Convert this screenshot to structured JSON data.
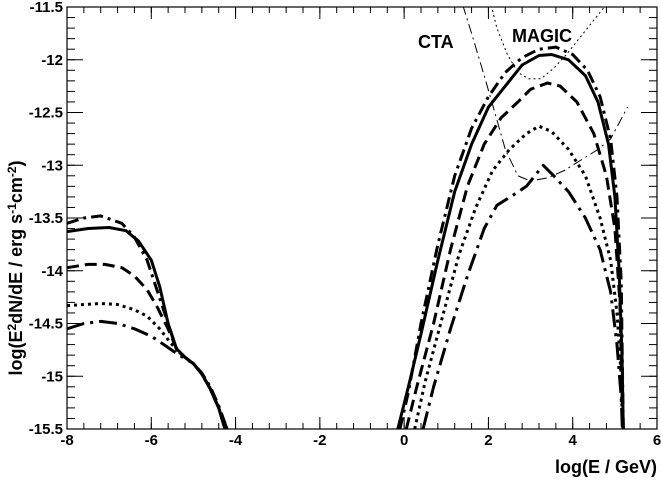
{
  "chart_data": {
    "type": "line",
    "xlabel": "log(E / GeV)",
    "ylabel_parts": [
      "log(E",
      "2",
      "dN/dE / erg s",
      "-1",
      "cm",
      "-2",
      ")"
    ],
    "xlim": [
      -8,
      6
    ],
    "ylim": [
      -15.5,
      -11.5
    ],
    "x_ticks": [
      -8,
      -6,
      -4,
      -2,
      0,
      2,
      4,
      6
    ],
    "x_tick_labels": [
      "-8",
      "-6",
      "-4",
      "-2",
      "0",
      "2",
      "4",
      "6"
    ],
    "y_ticks": [
      -15.5,
      -15,
      -14.5,
      -14,
      -13.5,
      -13,
      -12.5,
      -12,
      -11.5
    ],
    "y_tick_labels": [
      "-15.5",
      "-15",
      "-14.5",
      "-14",
      "-13.5",
      "-13",
      "-12.5",
      "-12",
      "-11.5"
    ],
    "annotations": [
      {
        "text": "CTA",
        "x": 1.2,
        "y": -12.05
      },
      {
        "text": "MAGIC",
        "x": 2.95,
        "y": -11.82
      }
    ],
    "grid": false,
    "series": [
      {
        "style": "solid",
        "low_energy": [
          [
            -8,
            -13.63
          ],
          [
            -7.5,
            -13.6
          ],
          [
            -7,
            -13.59
          ],
          [
            -6.6,
            -13.62
          ],
          [
            -6.3,
            -13.72
          ],
          [
            -6,
            -13.9
          ],
          [
            -5.8,
            -14.15
          ],
          [
            -5.6,
            -14.5
          ],
          [
            -5.4,
            -14.74
          ],
          [
            -5.2,
            -14.82
          ],
          [
            -5,
            -14.88
          ],
          [
            -4.8,
            -14.98
          ],
          [
            -4.6,
            -15.12
          ],
          [
            -4.4,
            -15.3
          ],
          [
            -4.25,
            -15.5
          ]
        ],
        "high_energy": [
          [
            -0.15,
            -15.5
          ],
          [
            0.1,
            -15.1
          ],
          [
            0.4,
            -14.6
          ],
          [
            0.8,
            -13.9
          ],
          [
            1.2,
            -13.25
          ],
          [
            1.6,
            -12.8
          ],
          [
            2.0,
            -12.45
          ],
          [
            2.4,
            -12.25
          ],
          [
            2.8,
            -12.05
          ],
          [
            3.2,
            -11.96
          ],
          [
            3.5,
            -11.95
          ],
          [
            3.9,
            -12.0
          ],
          [
            4.3,
            -12.15
          ],
          [
            4.6,
            -12.4
          ],
          [
            4.85,
            -12.8
          ],
          [
            5.0,
            -13.3
          ],
          [
            5.1,
            -14.0
          ],
          [
            5.17,
            -14.8
          ],
          [
            5.2,
            -15.5
          ]
        ]
      },
      {
        "style": "dashdot",
        "low_energy": [
          [
            -8,
            -13.55
          ],
          [
            -7.6,
            -13.5
          ],
          [
            -7.2,
            -13.48
          ],
          [
            -6.7,
            -13.55
          ],
          [
            -6.4,
            -13.68
          ],
          [
            -6.1,
            -13.9
          ],
          [
            -5.85,
            -14.2
          ],
          [
            -5.6,
            -14.5
          ],
          [
            -5.4,
            -14.75
          ],
          [
            -5.2,
            -14.82
          ],
          [
            -5,
            -14.88
          ],
          [
            -4.8,
            -14.97
          ],
          [
            -4.6,
            -15.1
          ],
          [
            -4.4,
            -15.28
          ],
          [
            -4.2,
            -15.5
          ]
        ],
        "high_energy": [
          [
            -0.1,
            -15.5
          ],
          [
            0.1,
            -15.15
          ],
          [
            0.4,
            -14.5
          ],
          [
            0.8,
            -13.75
          ],
          [
            1.2,
            -13.1
          ],
          [
            1.6,
            -12.65
          ],
          [
            2.0,
            -12.35
          ],
          [
            2.4,
            -12.12
          ],
          [
            2.8,
            -11.98
          ],
          [
            3.2,
            -11.9
          ],
          [
            3.6,
            -11.88
          ],
          [
            4.0,
            -11.95
          ],
          [
            4.35,
            -12.1
          ],
          [
            4.65,
            -12.35
          ],
          [
            4.9,
            -12.75
          ],
          [
            5.05,
            -13.3
          ],
          [
            5.15,
            -14.1
          ],
          [
            5.2,
            -15.5
          ]
        ]
      },
      {
        "style": "dashed",
        "low_energy": [
          [
            -8,
            -13.97
          ],
          [
            -7.5,
            -13.94
          ],
          [
            -7.1,
            -13.94
          ],
          [
            -6.7,
            -13.97
          ],
          [
            -6.4,
            -14.05
          ],
          [
            -6.1,
            -14.18
          ],
          [
            -5.85,
            -14.35
          ],
          [
            -5.6,
            -14.55
          ],
          [
            -5.4,
            -14.74
          ],
          [
            -5.2,
            -14.82
          ],
          [
            -5,
            -14.88
          ],
          [
            -4.8,
            -14.98
          ],
          [
            -4.6,
            -15.12
          ],
          [
            -4.4,
            -15.3
          ],
          [
            -4.25,
            -15.5
          ]
        ],
        "high_energy": [
          [
            0.05,
            -15.5
          ],
          [
            0.3,
            -15.1
          ],
          [
            0.7,
            -14.5
          ],
          [
            1.1,
            -13.8
          ],
          [
            1.5,
            -13.2
          ],
          [
            1.9,
            -12.8
          ],
          [
            2.3,
            -12.55
          ],
          [
            2.7,
            -12.4
          ],
          [
            3.0,
            -12.28
          ],
          [
            3.4,
            -12.22
          ],
          [
            3.7,
            -12.25
          ],
          [
            4.1,
            -12.4
          ],
          [
            4.5,
            -12.7
          ],
          [
            4.8,
            -13.1
          ],
          [
            5.0,
            -13.6
          ],
          [
            5.12,
            -14.3
          ],
          [
            5.19,
            -15.5
          ]
        ]
      },
      {
        "style": "dotted",
        "low_energy": [
          [
            -8,
            -14.33
          ],
          [
            -7.6,
            -14.32
          ],
          [
            -7.2,
            -14.31
          ],
          [
            -6.8,
            -14.32
          ],
          [
            -6.4,
            -14.37
          ],
          [
            -6.1,
            -14.43
          ],
          [
            -5.8,
            -14.55
          ],
          [
            -5.55,
            -14.68
          ],
          [
            -5.35,
            -14.77
          ],
          [
            -5.2,
            -14.82
          ],
          [
            -5,
            -14.88
          ],
          [
            -4.8,
            -14.98
          ],
          [
            -4.6,
            -15.12
          ],
          [
            -4.4,
            -15.3
          ],
          [
            -4.25,
            -15.5
          ]
        ],
        "high_energy": [
          [
            0.25,
            -15.5
          ],
          [
            0.5,
            -15.05
          ],
          [
            0.9,
            -14.45
          ],
          [
            1.3,
            -13.85
          ],
          [
            1.7,
            -13.4
          ],
          [
            2.1,
            -13.05
          ],
          [
            2.5,
            -12.85
          ],
          [
            2.9,
            -12.7
          ],
          [
            3.2,
            -12.63
          ],
          [
            3.5,
            -12.68
          ],
          [
            3.9,
            -12.85
          ],
          [
            4.3,
            -13.1
          ],
          [
            4.65,
            -13.5
          ],
          [
            4.9,
            -13.9
          ],
          [
            5.05,
            -14.4
          ],
          [
            5.15,
            -15.0
          ],
          [
            5.18,
            -15.5
          ]
        ]
      },
      {
        "style": "longdashdot",
        "low_energy": [
          [
            -8,
            -14.55
          ],
          [
            -7.6,
            -14.5
          ],
          [
            -7.2,
            -14.48
          ],
          [
            -6.8,
            -14.5
          ],
          [
            -6.4,
            -14.55
          ],
          [
            -6.0,
            -14.62
          ],
          [
            -5.7,
            -14.7
          ],
          [
            -5.45,
            -14.77
          ],
          [
            -5.25,
            -14.82
          ],
          [
            -5,
            -14.88
          ],
          [
            -4.8,
            -14.98
          ],
          [
            -4.6,
            -15.12
          ],
          [
            -4.4,
            -15.3
          ],
          [
            -4.2,
            -15.5
          ]
        ],
        "high_energy": [
          [
            0.45,
            -15.5
          ],
          [
            0.7,
            -15.1
          ],
          [
            1.1,
            -14.55
          ],
          [
            1.5,
            -14.05
          ],
          [
            1.9,
            -13.6
          ],
          [
            2.2,
            -13.38
          ],
          [
            2.6,
            -13.28
          ],
          [
            2.9,
            -13.2
          ],
          [
            3.1,
            -13.1
          ],
          [
            3.3,
            -13.0
          ],
          [
            3.55,
            -13.1
          ],
          [
            3.9,
            -13.25
          ],
          [
            4.3,
            -13.5
          ],
          [
            4.65,
            -13.8
          ],
          [
            4.9,
            -14.2
          ],
          [
            5.05,
            -14.7
          ],
          [
            5.15,
            -15.2
          ],
          [
            5.18,
            -15.5
          ]
        ]
      }
    ],
    "sensitivity_curves": [
      {
        "label": "CTA",
        "style": "thin-dashdot",
        "points": [
          [
            1.25,
            -11.3
          ],
          [
            1.6,
            -11.75
          ],
          [
            1.9,
            -12.15
          ],
          [
            2.15,
            -12.5
          ],
          [
            2.4,
            -12.85
          ],
          [
            2.7,
            -13.1
          ],
          [
            3.0,
            -13.15
          ],
          [
            3.4,
            -13.12
          ],
          [
            3.8,
            -13.05
          ],
          [
            4.2,
            -12.95
          ],
          [
            4.6,
            -12.85
          ],
          [
            4.9,
            -12.75
          ],
          [
            5.1,
            -12.6
          ],
          [
            5.3,
            -12.45
          ]
        ]
      },
      {
        "label": "MAGIC",
        "style": "thin-dotted",
        "points": [
          [
            1.95,
            -11.3
          ],
          [
            2.2,
            -11.7
          ],
          [
            2.45,
            -11.95
          ],
          [
            2.7,
            -12.12
          ],
          [
            2.95,
            -12.18
          ],
          [
            3.25,
            -12.18
          ],
          [
            3.55,
            -12.08
          ],
          [
            3.85,
            -11.95
          ],
          [
            4.15,
            -11.8
          ],
          [
            4.45,
            -11.65
          ],
          [
            4.75,
            -11.5
          ]
        ]
      }
    ]
  }
}
